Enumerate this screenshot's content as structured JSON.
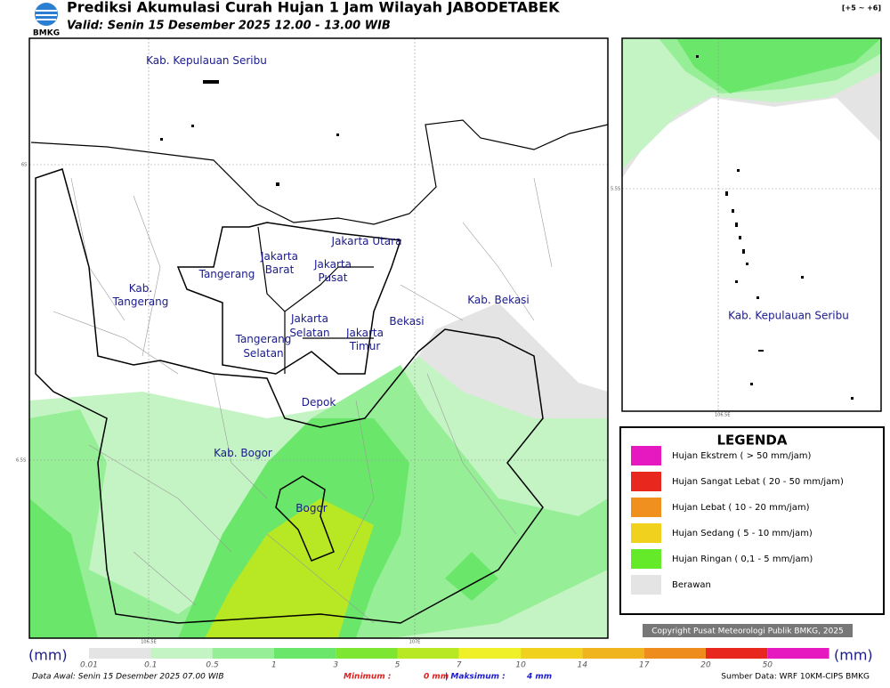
{
  "header": {
    "title": "Prediksi Akumulasi Curah Hujan 1 Jam Wilayah JABODETABEK",
    "subtitle": "Valid: Senin 15 Desember 2025 12.00 - 13.00 WIB",
    "logo": "BMKG",
    "offset": "[+5 ~ +6]"
  },
  "map": {
    "labels": [
      [
        "Kab. Kepulauan Seribu"
      ],
      [
        "Jakarta Utara"
      ],
      [
        "Jakarta",
        "Barat"
      ],
      [
        "Jakarta",
        "Pusat"
      ],
      [
        "Tangerang"
      ],
      [
        "Kab.",
        "Tangerang"
      ],
      [
        "Kab. Bekasi"
      ],
      [
        "Jakarta",
        "Selatan"
      ],
      [
        "Jakarta",
        "Timur"
      ],
      [
        "Bekasi"
      ],
      [
        "Tangerang",
        "Selatan"
      ],
      [
        "Depok"
      ],
      [
        "Kab. Bogor"
      ],
      [
        "Bogor"
      ]
    ],
    "grid_labels": [
      "6S",
      "6.5S",
      "106.5E",
      "107E"
    ]
  },
  "inset": {
    "label": "Kab. Kepulauan Seribu",
    "grid_labels": [
      "5.5S",
      "106.5E"
    ]
  },
  "legend": {
    "title": "LEGENDA",
    "items": [
      {
        "label": "Hujan Ekstrem ( > 50 mm/jam)",
        "color": "#e619c0"
      },
      {
        "label": "Hujan Sangat Lebat ( 20 - 50 mm/jam)",
        "color": "#e8281e"
      },
      {
        "label": "Hujan Lebat ( 10 - 20 mm/jam)",
        "color": "#f0901e"
      },
      {
        "label": "Hujan Sedang ( 5 - 10 mm/jam)",
        "color": "#f0d21e"
      },
      {
        "label": "Hujan Ringan ( 0,1 - 5 mm/jam)",
        "color": "#64ea28"
      },
      {
        "label": "Berawan",
        "color": "#e4e4e4"
      }
    ]
  },
  "copyright": "Copyright Pusat Meteorologi Publik BMKG, 2025",
  "scale": {
    "unit": "(mm)",
    "ticks": [
      0.01,
      0.1,
      0.5,
      1,
      3,
      5,
      7,
      10,
      14,
      17,
      20,
      50
    ],
    "colors": [
      "#e4e4e4",
      "#c4f4c4",
      "#96ee96",
      "#6ae66a",
      "#7ce632",
      "#b8e824",
      "#f0f028",
      "#f0d21e",
      "#f0b41e",
      "#ee8c1e",
      "#e8281e",
      "#e619c0"
    ]
  },
  "footer": {
    "data_awal": "Data Awal: Senin 15 Desember 2025 07.00 WIB",
    "min_label": "Minimum :",
    "min_value": "0 mm",
    "max_label": "| Maksimum :",
    "max_value": "4 mm",
    "source": "Sumber Data: WRF 10KM-CIPS BMKG"
  }
}
